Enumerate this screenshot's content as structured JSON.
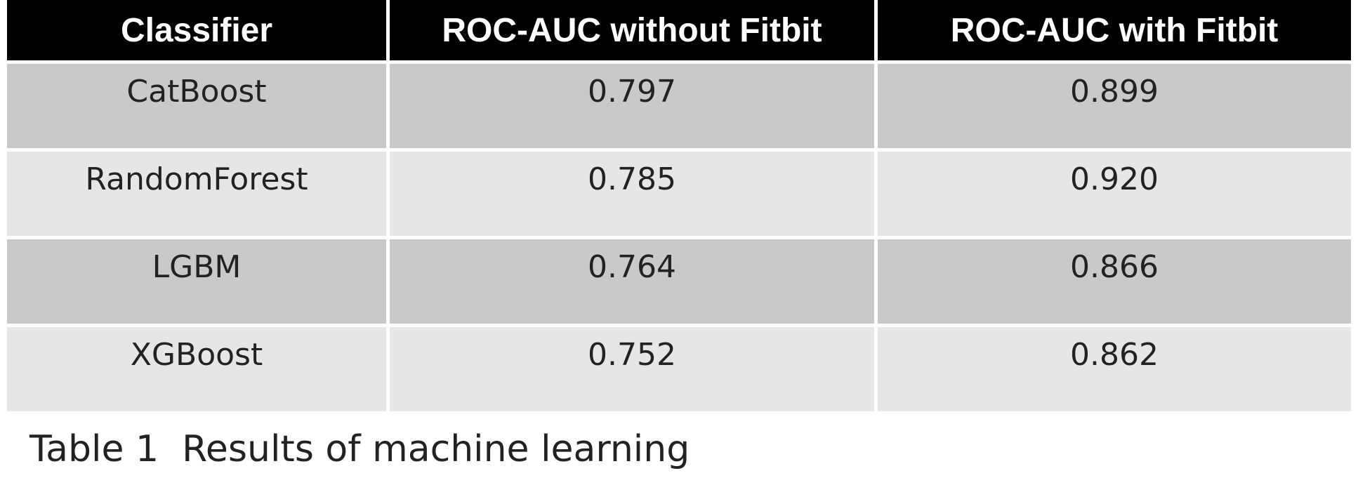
{
  "table": {
    "header": [
      "Classifier",
      "ROC-AUC without Fitbit",
      "ROC-AUC with Fitbit"
    ],
    "rows": [
      [
        "CatBoost",
        "0.797",
        "0.899"
      ],
      [
        "RandomForest",
        "0.785",
        "0.920"
      ],
      [
        "LGBM",
        "0.764",
        "0.866"
      ],
      [
        "XGBoost",
        "0.752",
        "0.862"
      ]
    ]
  },
  "caption": "Table 1  Results of machine learning"
}
